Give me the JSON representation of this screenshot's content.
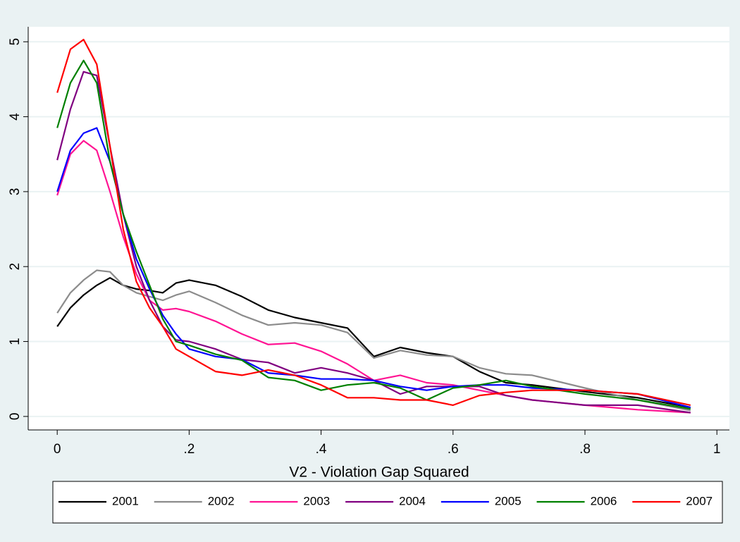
{
  "chart_data": {
    "type": "line",
    "x_label": "V2 - Violation Gap Squared",
    "x": [
      0,
      0.02,
      0.04,
      0.06,
      0.08,
      0.1,
      0.12,
      0.14,
      0.16,
      0.18,
      0.2,
      0.24,
      0.28,
      0.32,
      0.36,
      0.4,
      0.44,
      0.48,
      0.52,
      0.56,
      0.6,
      0.64,
      0.68,
      0.72,
      0.8,
      0.88,
      0.96
    ],
    "series": [
      {
        "name": "2001",
        "color": "#000000",
        "values": [
          1.2,
          1.45,
          1.62,
          1.75,
          1.85,
          1.75,
          1.7,
          1.68,
          1.65,
          1.78,
          1.82,
          1.75,
          1.6,
          1.42,
          1.32,
          1.25,
          1.18,
          0.8,
          0.92,
          0.85,
          0.8,
          0.6,
          0.45,
          0.42,
          0.33,
          0.25,
          0.12
        ]
      },
      {
        "name": "2002",
        "color": "#8c8c8c",
        "values": [
          1.38,
          1.65,
          1.82,
          1.95,
          1.93,
          1.75,
          1.65,
          1.6,
          1.55,
          1.62,
          1.67,
          1.52,
          1.35,
          1.22,
          1.25,
          1.22,
          1.12,
          0.78,
          0.88,
          0.82,
          0.8,
          0.65,
          0.57,
          0.55,
          0.38,
          0.22,
          0.08
        ]
      },
      {
        "name": "2003",
        "color": "#ff1493",
        "values": [
          2.95,
          3.5,
          3.68,
          3.55,
          3.0,
          2.4,
          1.9,
          1.55,
          1.42,
          1.44,
          1.4,
          1.27,
          1.1,
          0.96,
          0.98,
          0.87,
          0.7,
          0.48,
          0.55,
          0.45,
          0.42,
          0.35,
          0.28,
          0.22,
          0.15,
          0.09,
          0.05
        ]
      },
      {
        "name": "2004",
        "color": "#800080",
        "values": [
          3.42,
          4.1,
          4.6,
          4.55,
          3.6,
          2.7,
          2.0,
          1.55,
          1.2,
          1.02,
          1.0,
          0.9,
          0.76,
          0.72,
          0.58,
          0.65,
          0.58,
          0.48,
          0.3,
          0.4,
          0.4,
          0.4,
          0.28,
          0.22,
          0.15,
          0.15,
          0.05
        ]
      },
      {
        "name": "2005",
        "color": "#0000ff",
        "values": [
          3.0,
          3.55,
          3.78,
          3.85,
          3.4,
          2.7,
          2.1,
          1.7,
          1.35,
          1.1,
          0.9,
          0.8,
          0.76,
          0.58,
          0.55,
          0.5,
          0.5,
          0.48,
          0.4,
          0.35,
          0.4,
          0.42,
          0.42,
          0.38,
          0.35,
          0.3,
          0.12
        ]
      },
      {
        "name": "2006",
        "color": "#008000",
        "values": [
          3.85,
          4.45,
          4.75,
          4.45,
          3.4,
          2.7,
          2.2,
          1.75,
          1.3,
          1.0,
          0.95,
          0.83,
          0.75,
          0.52,
          0.48,
          0.35,
          0.42,
          0.45,
          0.38,
          0.22,
          0.38,
          0.42,
          0.48,
          0.4,
          0.3,
          0.22,
          0.1
        ]
      },
      {
        "name": "2007",
        "color": "#ff0000",
        "values": [
          4.32,
          4.9,
          5.03,
          4.7,
          3.6,
          2.5,
          1.8,
          1.45,
          1.2,
          0.9,
          0.8,
          0.6,
          0.55,
          0.62,
          0.55,
          0.42,
          0.25,
          0.25,
          0.22,
          0.22,
          0.15,
          0.28,
          0.32,
          0.35,
          0.35,
          0.3,
          0.15
        ]
      }
    ],
    "xlim": [
      -0.044,
      1.019
    ],
    "ylim": [
      -0.18,
      5.2
    ],
    "xticks": [
      0,
      {
        "value": 0.2,
        "label": ".2"
      },
      {
        "value": 0.4,
        "label": ".4"
      },
      {
        "value": 0.6,
        "label": ".6"
      },
      {
        "value": 0.8,
        "label": ".8"
      },
      1
    ],
    "yticks": [
      0,
      1,
      2,
      3,
      4,
      5
    ],
    "grid": true
  }
}
